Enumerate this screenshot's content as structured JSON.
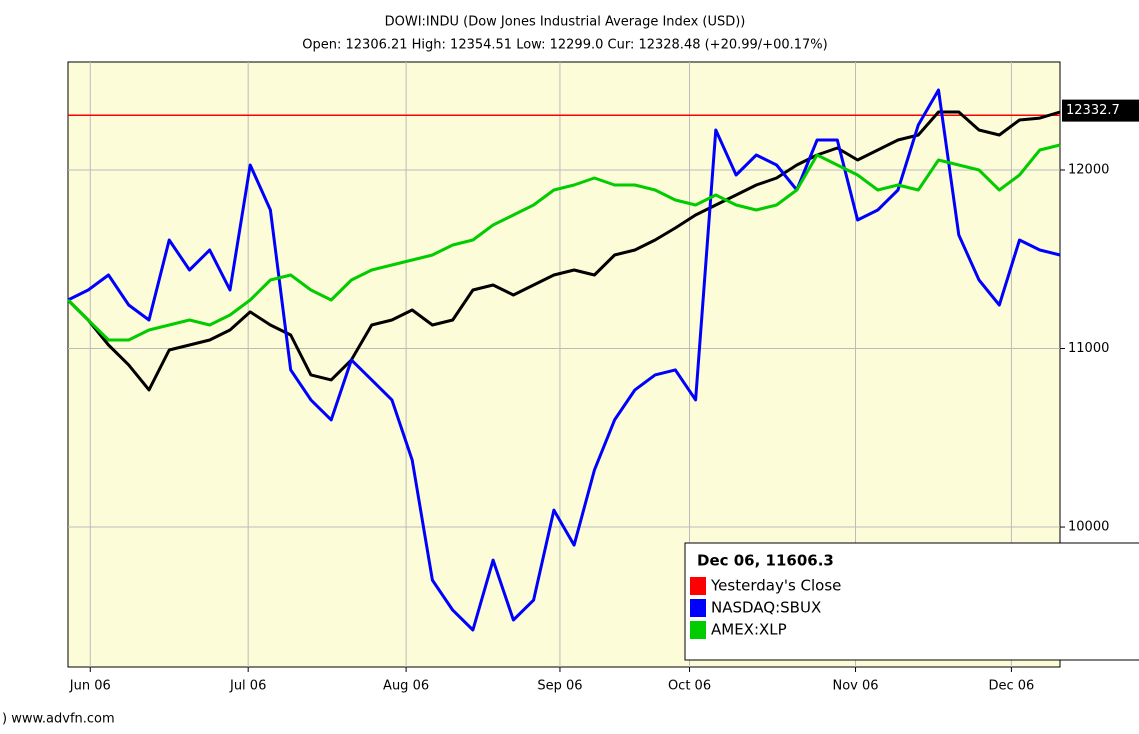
{
  "chart_data": {
    "type": "line",
    "title": "DOWI:INDU (Dow Jones Industrial Average Index (USD))",
    "subtitle": "Open: 12306.21 High: 12354.51 Low: 12299.0 Cur: 12328.48 (+20.99/+00.17%)",
    "xlim": [
      0,
      49
    ],
    "xticks": [
      {
        "value": 1.1,
        "label": "Jun 06"
      },
      {
        "value": 8.9,
        "label": "Jul 06"
      },
      {
        "value": 16.7,
        "label": "Aug 06"
      },
      {
        "value": 24.3,
        "label": "Sep 06"
      },
      {
        "value": 30.7,
        "label": "Oct 06"
      },
      {
        "value": 38.9,
        "label": "Nov 06"
      },
      {
        "value": 46.6,
        "label": "Dec 06"
      }
    ],
    "ylim": [
      9216,
      12605
    ],
    "yticks": [
      10000,
      11000,
      12000
    ],
    "grid": true,
    "current_value": 12332.7,
    "reference_line": {
      "name": "Yesterday's Close",
      "color": "#ff0000",
      "value": 12307
    },
    "series": [
      {
        "color": "#000000",
        "values": [
          11272,
          11160,
          11020,
          10908,
          10768,
          10992,
          11020,
          11048,
          11104,
          11205,
          11132,
          11076,
          10852,
          10824,
          10936,
          11132,
          11160,
          11216,
          11132,
          11160,
          11328,
          11356,
          11300,
          11356,
          11412,
          11440,
          11412,
          11524,
          11552,
          11608,
          11675,
          11748,
          11804,
          11860,
          11916,
          11955,
          12028,
          12084,
          12123,
          12056,
          12112,
          12168,
          12196,
          12325,
          12325,
          12224,
          12196,
          12280,
          12291,
          12325
        ]
      },
      {
        "name": "NASDAQ:SBUX",
        "color": "#0000ff",
        "values": [
          11272,
          11328,
          11412,
          11244,
          11160,
          11608,
          11440,
          11552,
          11328,
          12028,
          11776,
          10880,
          10712,
          10600,
          10936,
          10824,
          10712,
          10375,
          9703,
          9535,
          9423,
          9815,
          9479,
          9591,
          10095,
          9899,
          10319,
          10600,
          10768,
          10852,
          10880,
          10712,
          12224,
          11972,
          12084,
          12028,
          11888,
          12168,
          12168,
          11720,
          11776,
          11888,
          12252,
          12448,
          11636,
          11384,
          11244,
          11608,
          11552,
          11524
        ]
      },
      {
        "name": "AMEX:XLP",
        "color": "#00cc00",
        "values": [
          11272,
          11160,
          11048,
          11048,
          11104,
          11132,
          11160,
          11132,
          11188,
          11272,
          11384,
          11412,
          11328,
          11272,
          11384,
          11440,
          11468,
          11496,
          11524,
          11580,
          11608,
          11692,
          11748,
          11804,
          11888,
          11916,
          11955,
          11916,
          11916,
          11888,
          11832,
          11804,
          11860,
          11804,
          11776,
          11804,
          11888,
          12084,
          12028,
          11972,
          11888,
          11916,
          11888,
          12056,
          12028,
          12000,
          11888,
          11972,
          12112,
          12140
        ]
      }
    ],
    "tooltip": "Dec 06, 11606.3",
    "source": ") www.advfn.com"
  }
}
